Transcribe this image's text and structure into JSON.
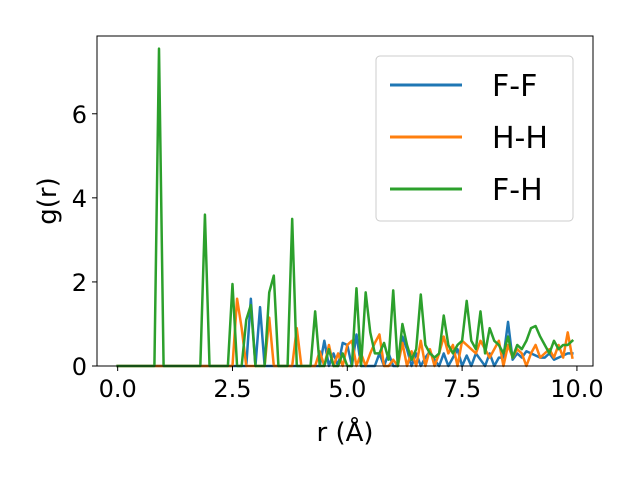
{
  "chart_data": {
    "type": "line",
    "title": "",
    "xlabel": "r (Å)",
    "ylabel": "g(r)",
    "xlim": [
      -0.45,
      10.35
    ],
    "ylim": [
      0,
      7.85
    ],
    "xticks": [
      0.0,
      2.5,
      5.0,
      7.5,
      10.0
    ],
    "xtick_labels": [
      "0.0",
      "2.5",
      "5.0",
      "7.5",
      "10.0"
    ],
    "yticks": [
      0,
      2,
      4,
      6
    ],
    "ytick_labels": [
      "0",
      "2",
      "4",
      "6"
    ],
    "grid": false,
    "legend_position": "top-right",
    "x": [
      0.0,
      0.1,
      0.2,
      0.3,
      0.4,
      0.5,
      0.6,
      0.7,
      0.8,
      0.9,
      1.0,
      1.1,
      1.2,
      1.3,
      1.4,
      1.5,
      1.6,
      1.7,
      1.8,
      1.9,
      2.0,
      2.1,
      2.2,
      2.3,
      2.4,
      2.5,
      2.6,
      2.7,
      2.8,
      2.9,
      3.0,
      3.1,
      3.2,
      3.3,
      3.4,
      3.5,
      3.6,
      3.7,
      3.8,
      3.9,
      4.0,
      4.1,
      4.2,
      4.3,
      4.4,
      4.5,
      4.6,
      4.7,
      4.8,
      4.9,
      5.0,
      5.1,
      5.2,
      5.3,
      5.4,
      5.5,
      5.6,
      5.7,
      5.8,
      5.9,
      6.0,
      6.1,
      6.2,
      6.3,
      6.4,
      6.5,
      6.6,
      6.7,
      6.8,
      6.9,
      7.0,
      7.1,
      7.2,
      7.3,
      7.4,
      7.5,
      7.6,
      7.7,
      7.8,
      7.9,
      8.0,
      8.1,
      8.2,
      8.3,
      8.4,
      8.5,
      8.6,
      8.7,
      8.8,
      8.9,
      9.0,
      9.1,
      9.2,
      9.3,
      9.4,
      9.5,
      9.6,
      9.7,
      9.8,
      9.9
    ],
    "series": [
      {
        "name": "F-F",
        "color": "#1f77b4",
        "values": [
          0,
          0,
          0,
          0,
          0,
          0,
          0,
          0,
          0,
          0,
          0,
          0,
          0,
          0,
          0,
          0,
          0,
          0,
          0,
          0,
          0,
          0,
          0,
          0,
          0,
          0,
          0,
          0,
          0,
          1.6,
          0,
          1.4,
          0,
          0,
          0,
          0,
          0,
          0,
          0,
          0,
          0,
          0,
          0,
          0,
          0,
          0.6,
          0,
          0.3,
          0,
          0.55,
          0.5,
          0,
          0.75,
          0,
          0,
          0,
          0,
          0.3,
          0,
          0.3,
          0,
          0,
          0.7,
          0.4,
          0,
          0.3,
          0,
          0.2,
          0.35,
          0.15,
          0,
          0.3,
          0,
          0.2,
          0.4,
          0,
          0.25,
          0,
          0.3,
          0.15,
          0,
          0.3,
          0,
          0.2,
          0.2,
          1.05,
          0.15,
          0.3,
          0.2,
          0.35,
          0.3,
          0.25,
          0.2,
          0.2,
          0.3,
          0.15,
          0.2,
          0.25,
          0.3,
          0.3
        ]
      },
      {
        "name": "H-H",
        "color": "#ff7f0e",
        "values": [
          0,
          0,
          0,
          0,
          0,
          0,
          0,
          0,
          0,
          0,
          0,
          0,
          0,
          0,
          0,
          0,
          0,
          0,
          0,
          0,
          0,
          0,
          0,
          0,
          0,
          0,
          1.6,
          0.9,
          0,
          0,
          0,
          0,
          0,
          1.15,
          0,
          0,
          0,
          0,
          0,
          0.9,
          0,
          0,
          0,
          0,
          0.35,
          0,
          0.5,
          0,
          0.3,
          0,
          0.5,
          0.6,
          0,
          0.3,
          0,
          0.3,
          0.55,
          0.75,
          0,
          0,
          0.15,
          0,
          0.55,
          0,
          0.35,
          0,
          0.6,
          0,
          0.4,
          0,
          0.3,
          0.7,
          0.3,
          0.5,
          0,
          0.6,
          0.5,
          0.4,
          0.3,
          0.6,
          0.4,
          0.2,
          0.4,
          0.6,
          0,
          0.5,
          0.2,
          0.4,
          0.3,
          0,
          0.3,
          0.5,
          0.2,
          0.3,
          0.4,
          0.2,
          0.5,
          0.2,
          0.8,
          0.2
        ]
      },
      {
        "name": "F-H",
        "color": "#2ca02c",
        "values": [
          0,
          0,
          0,
          0,
          0,
          0,
          0,
          0,
          0,
          7.55,
          0,
          0,
          0,
          0,
          0,
          0,
          0,
          0,
          0,
          3.6,
          0,
          0,
          0,
          0,
          0,
          1.95,
          0,
          0,
          1.1,
          1.45,
          0,
          0,
          0,
          1.75,
          2.15,
          0,
          0,
          0,
          3.5,
          0,
          0,
          0,
          0,
          1.3,
          0,
          0,
          0.4,
          0,
          0,
          0.3,
          0,
          0,
          1.85,
          0,
          1.75,
          0.8,
          0.3,
          0.3,
          0.55,
          0.15,
          1.8,
          0,
          1.0,
          0.5,
          0.15,
          0.4,
          1.7,
          0.5,
          0.3,
          0.2,
          0.3,
          1.2,
          0.5,
          0.3,
          0.5,
          0.6,
          1.55,
          0.6,
          0.4,
          1.3,
          0.3,
          0.9,
          0.6,
          0.5,
          0.3,
          0.7,
          0.2,
          0.5,
          0.4,
          0.6,
          0.9,
          0.95,
          0.7,
          0.5,
          0.3,
          0.6,
          0.4,
          0.5,
          0.5,
          0.6
        ]
      }
    ]
  }
}
